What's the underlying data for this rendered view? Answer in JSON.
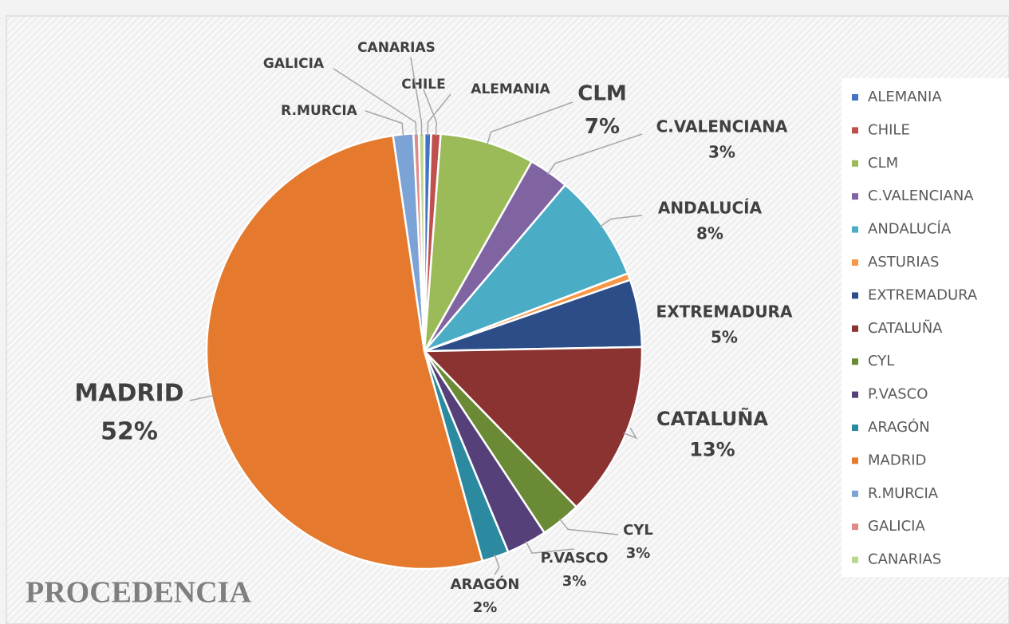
{
  "chart_data": {
    "type": "pie",
    "title": "PROCEDENCIA",
    "categories": [
      "ALEMANIA",
      "CHILE",
      "CLM",
      "C.VALENCIANA",
      "ANDALUCÍA",
      "ASTURIAS",
      "EXTREMADURA",
      "CATALUÑA",
      "CYL",
      "P.VASCO",
      "ARAGÓN",
      "MADRID",
      "R.MURCIA",
      "GALICIA",
      "CANARIAS"
    ],
    "values": [
      0.5,
      0.7,
      7,
      3,
      8,
      0.5,
      5,
      13,
      3,
      3,
      2,
      52,
      1.5,
      0.4,
      0.4
    ],
    "value_labels": [
      null,
      null,
      "7%",
      "3%",
      "8%",
      null,
      "5%",
      "13%",
      "3%",
      "3%",
      "2%",
      "52%",
      null,
      null,
      null
    ],
    "colors": [
      "#4472c4",
      "#c0504d",
      "#9bbb59",
      "#8064a2",
      "#4bacc6",
      "#f79646",
      "#2c4d87",
      "#8b3331",
      "#6a8a35",
      "#56407a",
      "#2b8aa0",
      "#e57a2e",
      "#7ba3d6",
      "#e08a87",
      "#bcd68f"
    ],
    "legend": "right"
  }
}
